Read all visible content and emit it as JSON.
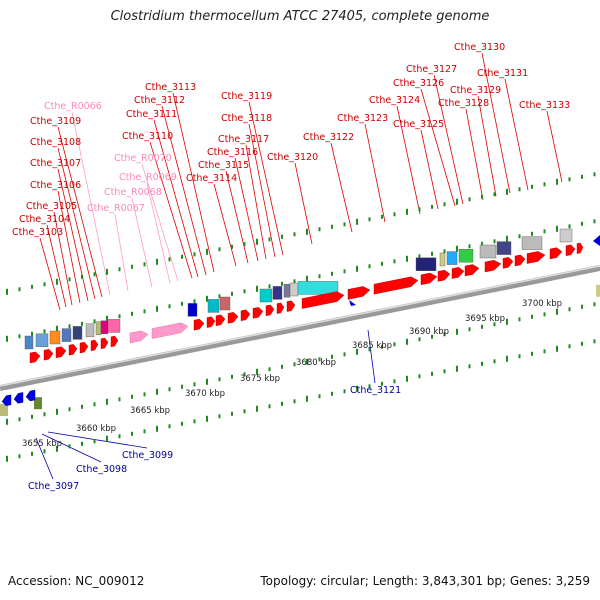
{
  "title": "Clostridium thermocellum ATCC 27405, complete genome",
  "footer": {
    "accession": "Accession: NC_009012",
    "summary": "Topology: circular; Length: 3,843,301 bp; Genes: 3,259"
  },
  "colors": {
    "forward_gene": "#ff0000",
    "reverse_gene": "#0000dd",
    "rna_gene": "#ff99cc",
    "label_forward": "#cc0000",
    "label_reverse": "#000099",
    "label_rna": "#ff88bb",
    "backbone": "#999999",
    "tick": "#228822"
  },
  "kbp_labels": [
    "3655 kbp",
    "3660 kbp",
    "3665 kbp",
    "3670 kbp",
    "3675 kbp",
    "3680 kbp",
    "3685 kbp",
    "3690 kbp",
    "3695 kbp",
    "3700 kbp"
  ],
  "gene_labels_top": [
    {
      "name": "Cthe_3103",
      "type": "fwd"
    },
    {
      "name": "Cthe_3104",
      "type": "fwd"
    },
    {
      "name": "Cthe_3105",
      "type": "fwd"
    },
    {
      "name": "Cthe_3106",
      "type": "fwd"
    },
    {
      "name": "Cthe_3107",
      "type": "fwd"
    },
    {
      "name": "Cthe_3108",
      "type": "fwd"
    },
    {
      "name": "Cthe_3109",
      "type": "fwd"
    },
    {
      "name": "Cthe_R0066",
      "type": "rna"
    },
    {
      "name": "Cthe_R0067",
      "type": "rna"
    },
    {
      "name": "Cthe_R0068",
      "type": "rna"
    },
    {
      "name": "Cthe_R0069",
      "type": "rna"
    },
    {
      "name": "Cthe_R0070",
      "type": "rna"
    },
    {
      "name": "Cthe_3110",
      "type": "fwd"
    },
    {
      "name": "Cthe_3111",
      "type": "fwd"
    },
    {
      "name": "Cthe_3112",
      "type": "fwd"
    },
    {
      "name": "Cthe_3113",
      "type": "fwd"
    },
    {
      "name": "Cthe_3114",
      "type": "fwd"
    },
    {
      "name": "Cthe_3115",
      "type": "fwd"
    },
    {
      "name": "Cthe_3116",
      "type": "fwd"
    },
    {
      "name": "Cthe_3117",
      "type": "fwd"
    },
    {
      "name": "Cthe_3118",
      "type": "fwd"
    },
    {
      "name": "Cthe_3119",
      "type": "fwd"
    },
    {
      "name": "Cthe_3120",
      "type": "fwd"
    },
    {
      "name": "Cthe_3122",
      "type": "fwd"
    },
    {
      "name": "Cthe_3123",
      "type": "fwd"
    },
    {
      "name": "Cthe_3124",
      "type": "fwd"
    },
    {
      "name": "Cthe_3125",
      "type": "fwd"
    },
    {
      "name": "Cthe_3126",
      "type": "fwd"
    },
    {
      "name": "Cthe_3127",
      "type": "fwd"
    },
    {
      "name": "Cthe_3128",
      "type": "fwd"
    },
    {
      "name": "Cthe_3129",
      "type": "fwd"
    },
    {
      "name": "Cthe_3130",
      "type": "fwd"
    },
    {
      "name": "Cthe_3131",
      "type": "fwd"
    },
    {
      "name": "Cthe_3133",
      "type": "fwd"
    }
  ],
  "gene_labels_bottom": [
    {
      "name": "Cthe_3097",
      "type": "rev"
    },
    {
      "name": "Cthe_3098",
      "type": "rev"
    },
    {
      "name": "Cthe_3099",
      "type": "rev"
    },
    {
      "name": "Cthe_3121",
      "type": "rev"
    }
  ]
}
